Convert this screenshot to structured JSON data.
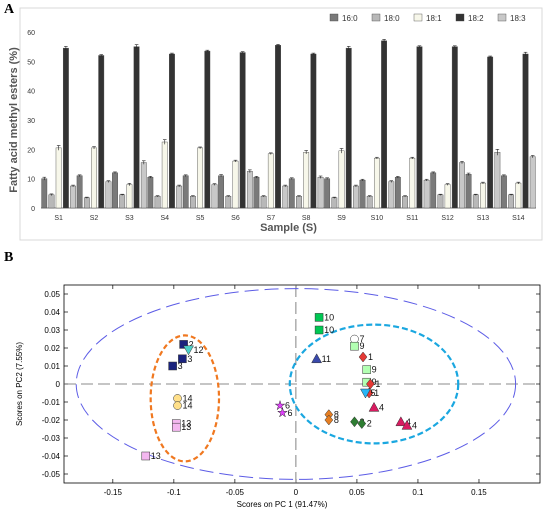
{
  "panels": {
    "a_label": "A",
    "b_label": "B"
  },
  "chart_data": [
    {
      "type": "bar",
      "title": "",
      "xlabel": "Sample (S)",
      "ylabel": "Fatty acid methyl esters (%)",
      "ylim": [
        0,
        60
      ],
      "yticks": [
        0,
        10,
        20,
        30,
        40,
        50,
        60
      ],
      "grid": false,
      "legend_position": "top-right",
      "categories": [
        "S1",
        "S2",
        "S3",
        "S4",
        "S5",
        "S6",
        "S7",
        "S8",
        "S9",
        "S10",
        "S11",
        "S12",
        "S13",
        "S14"
      ],
      "series": [
        {
          "name": "16:0",
          "color": "#7a7a7a",
          "values": [
            10,
            11,
            12,
            10.5,
            11,
            11,
            10.5,
            10,
            10,
            9.5,
            10.5,
            12,
            11.5,
            11
          ],
          "errors": [
            0.5,
            0.3,
            0.3,
            0.3,
            0.3,
            0.4,
            0.3,
            0.3,
            0.3,
            0.3,
            0.3,
            0.3,
            0.4,
            0.3
          ]
        },
        {
          "name": "18:0",
          "color": "#b8b8b8",
          "values": [
            4.5,
            3.5,
            4.5,
            4,
            4,
            4,
            4,
            4,
            3.5,
            4,
            4,
            4.5,
            4.5,
            4.5
          ],
          "errors": [
            0.3,
            0.2,
            0.2,
            0.2,
            0.2,
            0.2,
            0.2,
            0.2,
            0.2,
            0.2,
            0.2,
            0.2,
            0.2,
            0.2
          ]
        },
        {
          "name": "18:1",
          "color": "#f7f7ea",
          "values": [
            20.5,
            20.5,
            8,
            22.5,
            20.5,
            16,
            18.5,
            19,
            19.5,
            17,
            17,
            8,
            8.5,
            8.5
          ],
          "errors": [
            0.8,
            0.4,
            0.4,
            0.8,
            0.3,
            0.3,
            0.3,
            0.6,
            0.8,
            0.3,
            0.3,
            0.3,
            0.3,
            0.3
          ]
        },
        {
          "name": "18:2",
          "color": "#333333",
          "values": [
            54.5,
            52,
            55,
            52.5,
            53.5,
            53,
            55.5,
            52.5,
            54.5,
            57,
            55,
            55,
            51.5,
            52.5
          ],
          "errors": [
            0.6,
            0.3,
            0.7,
            0.3,
            0.3,
            0.3,
            0.3,
            0.3,
            0.6,
            0.5,
            0.3,
            0.3,
            0.3,
            0.6
          ]
        },
        {
          "name": "18:3",
          "color": "#c8c8c8",
          "values": [
            7.5,
            9,
            15.5,
            7.5,
            8,
            12.5,
            7.5,
            10.5,
            7.5,
            9,
            9.5,
            15.5,
            19,
            17.5
          ],
          "errors": [
            0.3,
            0.3,
            0.6,
            0.3,
            0.3,
            0.5,
            0.3,
            0.4,
            0.3,
            0.3,
            0.3,
            0.4,
            1.0,
            0.4
          ]
        }
      ]
    },
    {
      "type": "scatter",
      "title": "",
      "xlabel": "Scores on PC 1 (91.47%)",
      "ylabel": "Scores on PC2 (7.55%)",
      "xlim": [
        -0.19,
        0.2
      ],
      "ylim": [
        -0.055,
        0.055
      ],
      "xticks": [
        -0.15,
        -0.1,
        -0.05,
        0,
        0.05,
        0.1,
        0.15
      ],
      "xtick_labels": [
        "-0.15",
        "-0.1",
        "-0.05",
        "0",
        "0.05",
        "0.1",
        "0.15"
      ],
      "yticks": [
        -0.05,
        -0.04,
        -0.03,
        -0.02,
        -0.01,
        0,
        0.01,
        0.02,
        0.03,
        0.04,
        0.05
      ],
      "ytick_labels": [
        "-0.05",
        "-0.04",
        "-0.03",
        "-0.02",
        "-0.01",
        "0",
        "0.01",
        "0.02",
        "0.03",
        "0.04",
        "0.05"
      ],
      "grid": false,
      "points": [
        {
          "label": "2",
          "x": -0.092,
          "y": 0.022,
          "shape": "square",
          "color": "#1a237e"
        },
        {
          "label": "12",
          "x": -0.088,
          "y": 0.019,
          "shape": "triangle-down",
          "color": "#4dd0c8"
        },
        {
          "label": "3",
          "x": -0.093,
          "y": 0.014,
          "shape": "square",
          "color": "#1a237e"
        },
        {
          "label": "3",
          "x": -0.101,
          "y": 0.01,
          "shape": "square",
          "color": "#1a237e"
        },
        {
          "label": "14",
          "x": -0.097,
          "y": -0.008,
          "shape": "circle",
          "color": "#ffe08a"
        },
        {
          "label": "14",
          "x": -0.097,
          "y": -0.012,
          "shape": "circle",
          "color": "#ffe08a"
        },
        {
          "label": "13",
          "x": -0.098,
          "y": -0.022,
          "shape": "square",
          "color": "#f4b8f0"
        },
        {
          "label": "13",
          "x": -0.098,
          "y": -0.024,
          "shape": "square",
          "color": "#f4b8f0"
        },
        {
          "label": "13",
          "x": -0.123,
          "y": -0.04,
          "shape": "square",
          "color": "#f4b8f0"
        },
        {
          "label": "6",
          "x": -0.013,
          "y": -0.012,
          "shape": "star",
          "color": "#e040fb"
        },
        {
          "label": "6",
          "x": -0.011,
          "y": -0.016,
          "shape": "star",
          "color": "#e040fb"
        },
        {
          "label": "10",
          "x": 0.019,
          "y": 0.037,
          "shape": "square",
          "color": "#00c853"
        },
        {
          "label": "10",
          "x": 0.019,
          "y": 0.03,
          "shape": "square",
          "color": "#00c853"
        },
        {
          "label": "7",
          "x": 0.048,
          "y": 0.025,
          "shape": "circle",
          "color": "#ffffff"
        },
        {
          "label": "9",
          "x": 0.048,
          "y": 0.021,
          "shape": "square",
          "color": "#b2ffb2"
        },
        {
          "label": "11",
          "x": 0.017,
          "y": 0.014,
          "shape": "triangle-up",
          "color": "#3949ab"
        },
        {
          "label": "1",
          "x": 0.055,
          "y": 0.015,
          "shape": "diamond",
          "color": "#e53935"
        },
        {
          "label": "9",
          "x": 0.058,
          "y": 0.008,
          "shape": "square",
          "color": "#b2ffb2"
        },
        {
          "label": "9",
          "x": 0.058,
          "y": 0.001,
          "shape": "square",
          "color": "#b2ffb2"
        },
        {
          "label": "1",
          "x": 0.061,
          "y": 0.0,
          "shape": "diamond",
          "color": "#e53935"
        },
        {
          "label": "1",
          "x": 0.06,
          "y": -0.005,
          "shape": "diamond",
          "color": "#e53935"
        },
        {
          "label": "5",
          "x": 0.057,
          "y": -0.005,
          "shape": "triangle-down",
          "color": "#29b6f6"
        },
        {
          "label": "4",
          "x": 0.064,
          "y": -0.013,
          "shape": "triangle-up",
          "color": "#d81b60"
        },
        {
          "label": "8",
          "x": 0.027,
          "y": -0.017,
          "shape": "diamond",
          "color": "#e67e22"
        },
        {
          "label": "8",
          "x": 0.027,
          "y": -0.02,
          "shape": "diamond",
          "color": "#e67e22"
        },
        {
          "label": "2",
          "x": 0.048,
          "y": -0.021,
          "shape": "diamond",
          "color": "#2e7d32"
        },
        {
          "label": "2",
          "x": 0.054,
          "y": -0.022,
          "shape": "diamond",
          "color": "#2e7d32"
        },
        {
          "label": "4",
          "x": 0.086,
          "y": -0.021,
          "shape": "triangle-up",
          "color": "#d81b60"
        },
        {
          "label": "4",
          "x": 0.091,
          "y": -0.023,
          "shape": "triangle-up",
          "color": "#d81b60"
        }
      ]
    }
  ]
}
